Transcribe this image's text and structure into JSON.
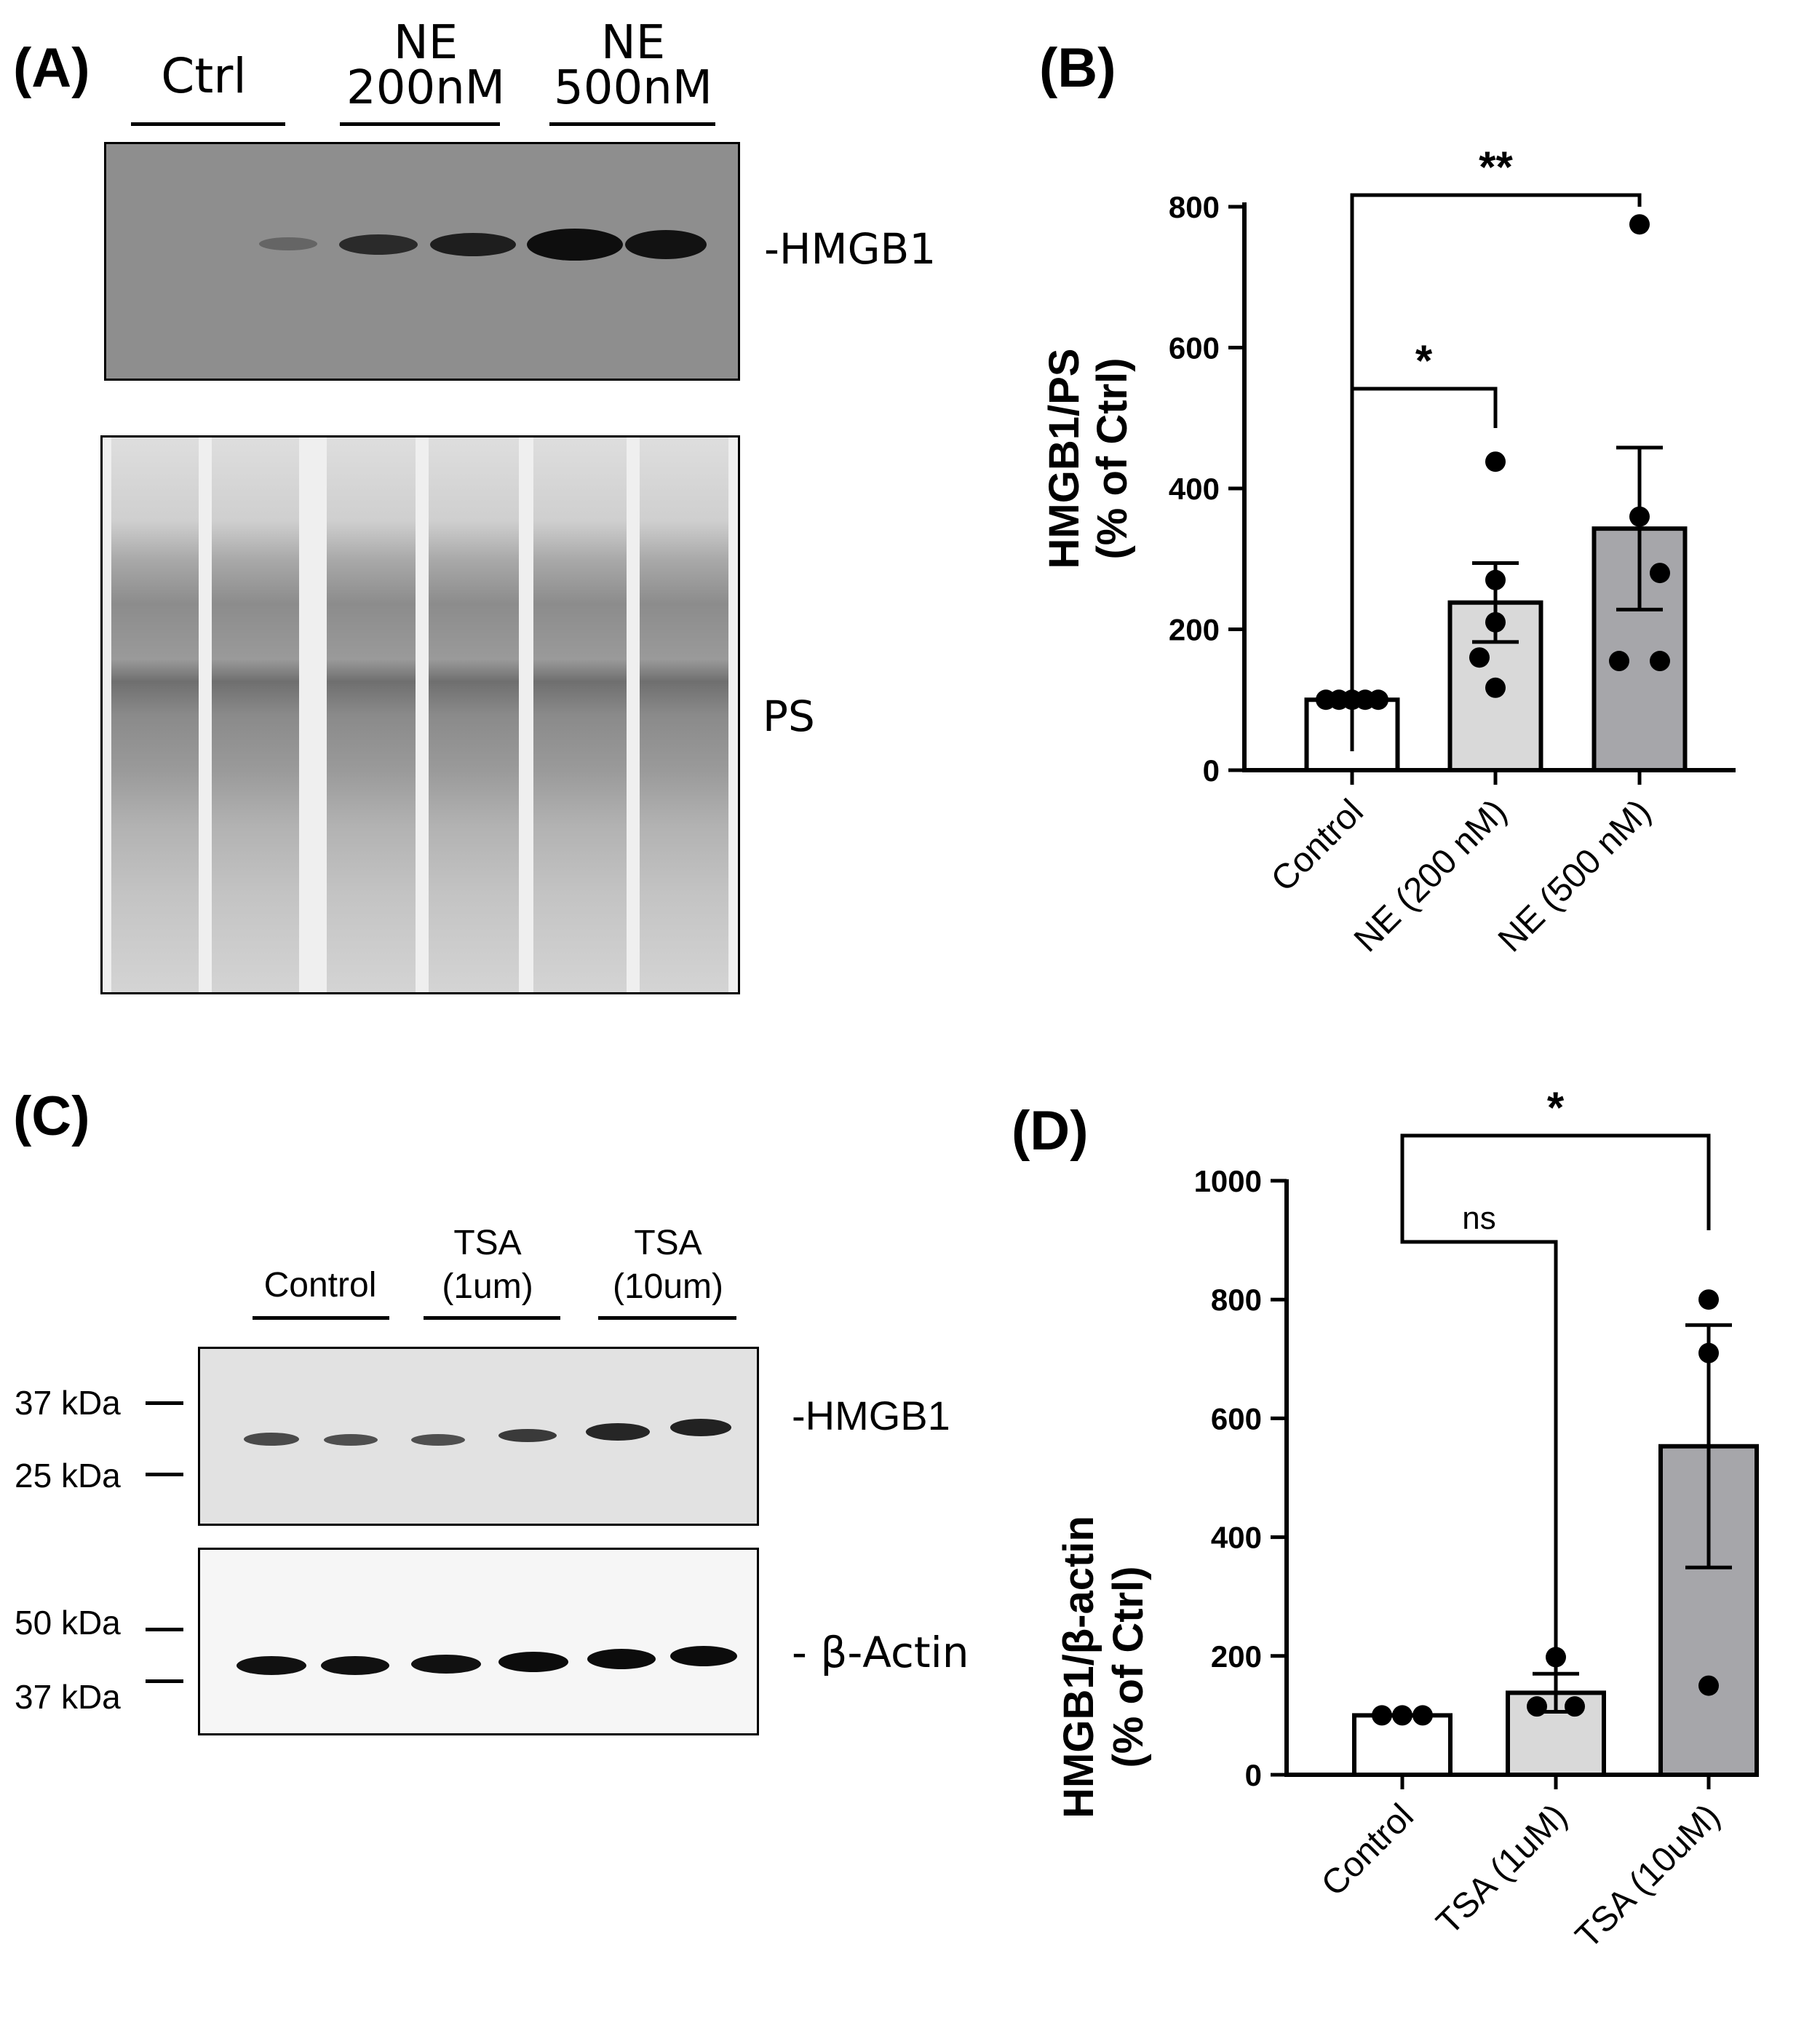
{
  "panelA": {
    "label": "(A)",
    "groups": [
      "Ctrl",
      "NE\n200nM",
      "NE\n500nM"
    ],
    "band1_label": "-HMGB1",
    "band2_label": "PS"
  },
  "panelC": {
    "label": "(C)",
    "groups": [
      "Control",
      "TSA\n(1um)",
      "TSA\n(10um)"
    ],
    "markers_top": [
      "37 kDa",
      "25 kDa"
    ],
    "markers_bottom": [
      "50 kDa",
      "37 kDa"
    ],
    "band1_label": "-HMGB1",
    "band2_label": "- β-Actin"
  },
  "chart_data": [
    {
      "panel": "(B)",
      "type": "bar",
      "categories": [
        "Control",
        "NE (200 nM)",
        "NE (500 nM)"
      ],
      "values": [
        100,
        238,
        343
      ],
      "errors": [
        0,
        56,
        115
      ],
      "points": [
        [
          100,
          100,
          100,
          100,
          100
        ],
        [
          438,
          270,
          210,
          160,
          117
        ],
        [
          775,
          360,
          280,
          155,
          155
        ]
      ],
      "bar_colors": [
        "#ffffff",
        "#d9d9d9",
        "#a6a6aa"
      ],
      "ylabel": [
        "HMGB1/PS",
        "(% of Ctrl)"
      ],
      "xlabel": "",
      "ylim": [
        0,
        800
      ],
      "yticks": [
        0,
        200,
        400,
        600,
        800
      ],
      "significance": [
        {
          "from": "Control",
          "to": "NE (200 nM)",
          "text": "*"
        },
        {
          "from": "Control",
          "to": "NE (500 nM)",
          "text": "**"
        }
      ]
    },
    {
      "panel": "(D)",
      "type": "bar",
      "categories": [
        "Control",
        "TSA (1uM)",
        "TSA (10uM)"
      ],
      "values": [
        100,
        138,
        553
      ],
      "errors": [
        0,
        32,
        204
      ],
      "points": [
        [
          100,
          100,
          100
        ],
        [
          198,
          115,
          115
        ],
        [
          800,
          710,
          150
        ]
      ],
      "bar_colors": [
        "#ffffff",
        "#d9d9d9",
        "#a6a6aa"
      ],
      "ylabel": [
        "HMGB1/β-actin",
        "(% of Ctrl)"
      ],
      "xlabel": "",
      "ylim": [
        0,
        1000
      ],
      "yticks": [
        0,
        200,
        400,
        600,
        800,
        1000
      ],
      "significance": [
        {
          "from": "Control",
          "to": "TSA (1uM)",
          "text": "ns"
        },
        {
          "from": "Control",
          "to": "TSA (10uM)",
          "text": "*"
        }
      ]
    }
  ]
}
